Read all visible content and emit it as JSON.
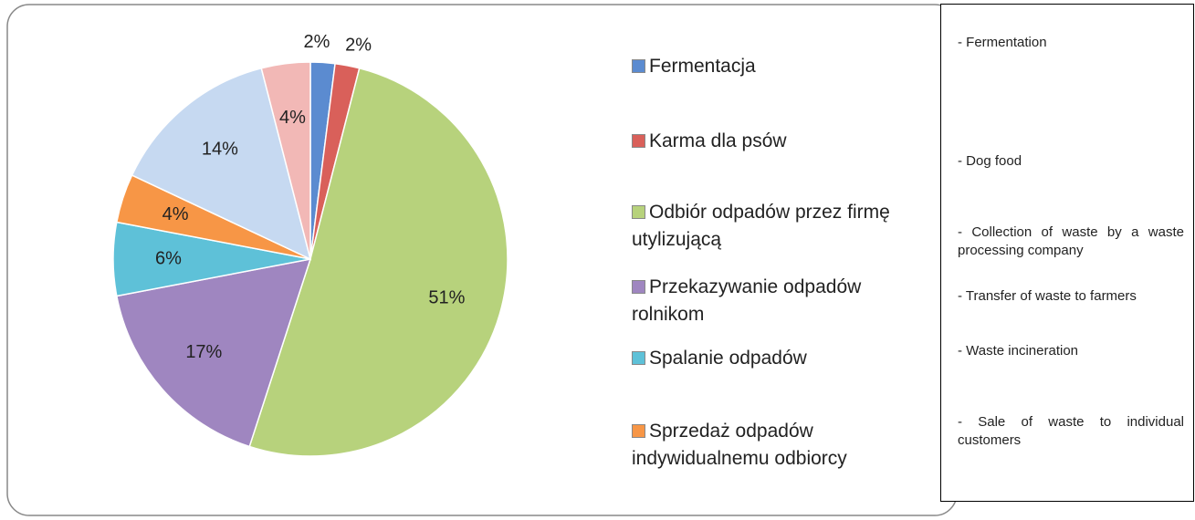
{
  "chart_data": {
    "type": "pie",
    "categories": [
      "Fermentacja",
      "Karma dla psów",
      "Odbiór odpadów przez firmę utylizującą",
      "Przekazywanie odpadów rolnikom",
      "Spalanie odpadów",
      "Sprzedaż odpadów indywidualnemu odbiorcy",
      null,
      null
    ],
    "values": [
      2,
      2,
      51,
      17,
      6,
      4,
      14,
      4
    ],
    "value_labels": [
      "2%",
      "2%",
      "51%",
      "17%",
      "6%",
      "4%",
      "14%",
      "4%"
    ],
    "colors": [
      "#5b8bd0",
      "#d9605a",
      "#b7d27c",
      "#9f86c0",
      "#5ec1d8",
      "#f79646",
      "#c6d9f1",
      "#f2b8b6"
    ],
    "legend": "right"
  },
  "translation_box": {
    "lines": [
      "- Fermentation",
      "- Dog food",
      "- Collection of waste by a waste processing company",
      "- Transfer of waste to farmers",
      "- Waste incineration",
      "- Sale of waste to individual customers"
    ]
  }
}
